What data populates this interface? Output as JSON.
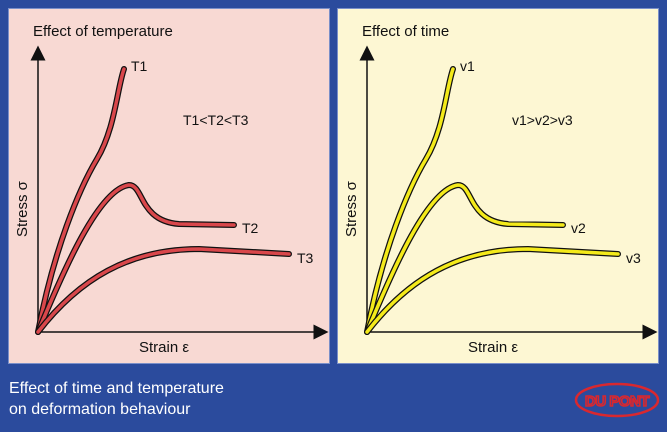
{
  "panels": [
    {
      "title": "Effect of temperature",
      "ylabel": "Stress σ",
      "xlabel": "Strain ε",
      "annotation": "T1<T2<T3",
      "curve_labels": [
        "T1",
        "T2",
        "T3"
      ],
      "curve_color": "#d9474b"
    },
    {
      "title": "Effect of time",
      "ylabel": "Stress σ",
      "xlabel": "Strain ε",
      "annotation": "v1>v2>v3",
      "curve_labels": [
        "v1",
        "v2",
        "v3"
      ],
      "curve_color": "#f4ea1a"
    }
  ],
  "caption": {
    "line1": "Effect of time and temperature",
    "line2": "on deformation behaviour"
  },
  "logo": {
    "text": "DU PONT",
    "color": "#d9282f"
  },
  "colors": {
    "background": "#2b4b9d",
    "panel_left": "#f8d9d3",
    "panel_right": "#fdf7d3"
  }
}
